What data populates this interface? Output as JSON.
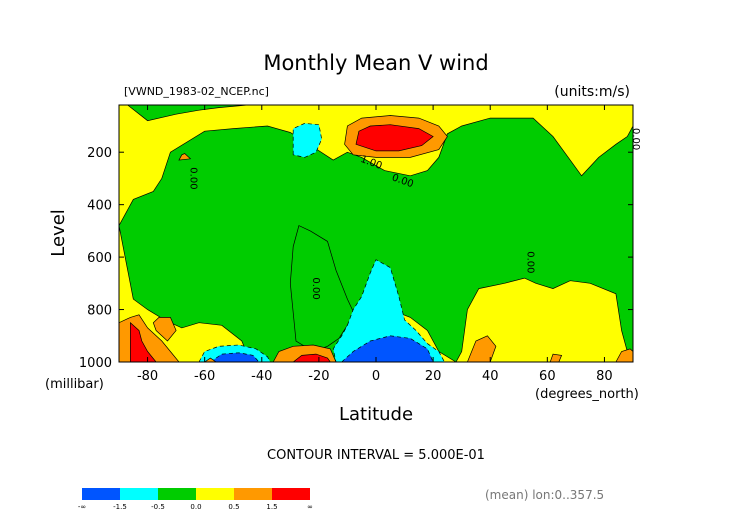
{
  "chart_data": {
    "type": "heatmap",
    "title": "Monthly Mean V wind",
    "file_label": "[VWND_1983-02_NCEP.nc]",
    "units_label": "(units:m/s)",
    "xlabel": "Latitude",
    "x_units": "(degrees_north)",
    "ylabel": "Level",
    "y_units": "(millibar)",
    "xlim": [
      -90,
      90
    ],
    "ylim": [
      1000,
      20
    ],
    "x_ticks": [
      -80,
      -60,
      -40,
      -20,
      0,
      20,
      40,
      60,
      80
    ],
    "y_ticks": [
      200,
      400,
      600,
      800,
      1000
    ],
    "footer": "CONTOUR INTERVAL = 5.000E-01",
    "mean_note": "(mean) lon:0..357.5",
    "legend": {
      "colors": [
        "#0055ff",
        "#00ffff",
        "#00cc00",
        "#ffff00",
        "#ff9900",
        "#ff0000"
      ],
      "labels": [
        "-∞",
        "-1.5",
        "-0.5",
        "0.0",
        "0.5",
        "1.5",
        "∞"
      ]
    },
    "contour_labels": [
      {
        "x": -65,
        "y": 300,
        "text": "0.00",
        "rotate": 90
      },
      {
        "x": -22,
        "y": 720,
        "text": "0.00",
        "rotate": 90
      },
      {
        "x": 53,
        "y": 620,
        "text": "0.00",
        "rotate": 90
      },
      {
        "x": 90,
        "y": 150,
        "text": "0.00",
        "rotate": 90
      },
      {
        "x": -2,
        "y": 250,
        "text": "1.00",
        "rotate": 20
      },
      {
        "x": 9,
        "y": 320,
        "text": "0.00",
        "rotate": 20
      }
    ],
    "regions": [
      {
        "level": 3,
        "points": [
          [
            -90,
            1000
          ],
          [
            -90,
            20
          ],
          [
            90,
            20
          ],
          [
            90,
            1000
          ]
        ]
      },
      {
        "level": 2,
        "points": [
          [
            -87,
            20
          ],
          [
            -80,
            80
          ],
          [
            -70,
            55
          ],
          [
            -62,
            40
          ],
          [
            -55,
            30
          ],
          [
            -45,
            20
          ]
        ]
      },
      {
        "level": 2,
        "points": [
          [
            -90,
            480
          ],
          [
            -85,
            380
          ],
          [
            -78,
            350
          ],
          [
            -75,
            300
          ],
          [
            -72,
            200
          ],
          [
            -60,
            120
          ],
          [
            -50,
            110
          ],
          [
            -38,
            100
          ],
          [
            -30,
            125
          ],
          [
            -22,
            180
          ],
          [
            -15,
            230
          ],
          [
            -10,
            200
          ],
          [
            -5,
            220
          ],
          [
            3,
            270
          ],
          [
            12,
            290
          ],
          [
            18,
            270
          ],
          [
            22,
            220
          ],
          [
            25,
            130
          ],
          [
            30,
            100
          ],
          [
            40,
            70
          ],
          [
            55,
            70
          ],
          [
            62,
            140
          ],
          [
            68,
            230
          ],
          [
            72,
            290
          ],
          [
            78,
            220
          ],
          [
            84,
            170
          ],
          [
            88,
            140
          ],
          [
            90,
            100
          ],
          [
            90,
            1000
          ],
          [
            88,
            960
          ],
          [
            86,
            880
          ],
          [
            84,
            740
          ],
          [
            75,
            700
          ],
          [
            68,
            690
          ],
          [
            62,
            720
          ],
          [
            56,
            700
          ],
          [
            52,
            680
          ],
          [
            45,
            700
          ],
          [
            36,
            720
          ],
          [
            32,
            800
          ],
          [
            30,
            960
          ],
          [
            28,
            1000
          ],
          [
            22,
            960
          ],
          [
            18,
            880
          ],
          [
            12,
            830
          ],
          [
            5,
            800
          ],
          [
            -2,
            790
          ],
          [
            -10,
            860
          ],
          [
            -13,
            910
          ],
          [
            -17,
            940
          ],
          [
            -22,
            960
          ],
          [
            -28,
            920
          ],
          [
            -30,
            700
          ],
          [
            -29,
            560
          ],
          [
            -27,
            480
          ],
          [
            -23,
            500
          ],
          [
            -17,
            540
          ],
          [
            -14,
            650
          ],
          [
            -10,
            760
          ],
          [
            -7,
            830
          ],
          [
            -4,
            870
          ],
          [
            -6,
            930
          ],
          [
            -12,
            990
          ],
          [
            -14,
            1000
          ],
          [
            -44,
            1000
          ],
          [
            -47,
            920
          ],
          [
            -54,
            860
          ],
          [
            -62,
            850
          ],
          [
            -68,
            870
          ],
          [
            -74,
            840
          ],
          [
            -80,
            800
          ],
          [
            -85,
            760
          ]
        ]
      },
      {
        "level": 1,
        "points": [
          [
            -10,
            860
          ],
          [
            -8,
            800
          ],
          [
            -5,
            750
          ],
          [
            -2,
            660
          ],
          [
            0,
            610
          ],
          [
            5,
            640
          ],
          [
            8,
            750
          ],
          [
            10,
            840
          ],
          [
            14,
            880
          ],
          [
            18,
            930
          ],
          [
            22,
            960
          ],
          [
            24,
            1000
          ],
          [
            -14,
            1000
          ],
          [
            -15,
            950
          ],
          [
            -12,
            900
          ]
        ]
      },
      {
        "level": 0,
        "points": [
          [
            -12,
            1000
          ],
          [
            -8,
            960
          ],
          [
            -2,
            920
          ],
          [
            5,
            900
          ],
          [
            12,
            910
          ],
          [
            18,
            950
          ],
          [
            20,
            1000
          ]
        ]
      },
      {
        "level": 1,
        "points": [
          [
            -62,
            1000
          ],
          [
            -60,
            960
          ],
          [
            -55,
            940
          ],
          [
            -48,
            935
          ],
          [
            -42,
            950
          ],
          [
            -38,
            980
          ],
          [
            -37,
            1000
          ]
        ]
      },
      {
        "level": 0,
        "points": [
          [
            -58,
            1000
          ],
          [
            -54,
            970
          ],
          [
            -48,
            965
          ],
          [
            -43,
            975
          ],
          [
            -41,
            1000
          ]
        ]
      },
      {
        "level": 1,
        "points": [
          [
            -29,
            210
          ],
          [
            -29,
            110
          ],
          [
            -25,
            90
          ],
          [
            -20,
            95
          ],
          [
            -19,
            150
          ],
          [
            -21,
            200
          ],
          [
            -25,
            220
          ]
        ]
      },
      {
        "level": 4,
        "points": [
          [
            -11,
            170
          ],
          [
            -10,
            100
          ],
          [
            -5,
            70
          ],
          [
            5,
            60
          ],
          [
            15,
            70
          ],
          [
            22,
            100
          ],
          [
            25,
            140
          ],
          [
            22,
            190
          ],
          [
            12,
            220
          ],
          [
            0,
            220
          ],
          [
            -8,
            210
          ]
        ]
      },
      {
        "level": 5,
        "points": [
          [
            -7,
            170
          ],
          [
            -6,
            120
          ],
          [
            -2,
            100
          ],
          [
            5,
            95
          ],
          [
            15,
            110
          ],
          [
            20,
            140
          ],
          [
            16,
            175
          ],
          [
            8,
            195
          ],
          [
            0,
            195
          ]
        ]
      },
      {
        "level": 4,
        "points": [
          [
            -36,
            1000
          ],
          [
            -34,
            960
          ],
          [
            -29,
            940
          ],
          [
            -22,
            935
          ],
          [
            -16,
            950
          ],
          [
            -14,
            1000
          ]
        ]
      },
      {
        "level": 5,
        "points": [
          [
            -29,
            1000
          ],
          [
            -26,
            975
          ],
          [
            -21,
            970
          ],
          [
            -17,
            985
          ],
          [
            -16,
            1000
          ]
        ]
      },
      {
        "level": 4,
        "points": [
          [
            -90,
            850
          ],
          [
            -86,
            830
          ],
          [
            -83,
            820
          ],
          [
            -80,
            870
          ],
          [
            -75,
            920
          ],
          [
            -72,
            960
          ],
          [
            -69,
            1000
          ],
          [
            -90,
            1000
          ]
        ]
      },
      {
        "level": 5,
        "points": [
          [
            -86,
            850
          ],
          [
            -83,
            880
          ],
          [
            -82,
            920
          ],
          [
            -80,
            960
          ],
          [
            -77,
            1000
          ],
          [
            -86,
            1000
          ]
        ]
      },
      {
        "level": 4,
        "points": [
          [
            -78,
            850
          ],
          [
            -76,
            830
          ],
          [
            -72,
            830
          ],
          [
            -70,
            880
          ],
          [
            -73,
            920
          ],
          [
            -77,
            880
          ]
        ]
      },
      {
        "level": 4,
        "points": [
          [
            -69,
            230
          ],
          [
            -68,
            210
          ],
          [
            -67,
            205
          ],
          [
            -65,
            225
          ]
        ]
      },
      {
        "level": 4,
        "points": [
          [
            32,
            1000
          ],
          [
            35,
            920
          ],
          [
            39,
            900
          ],
          [
            42,
            940
          ],
          [
            40,
            1000
          ]
        ]
      },
      {
        "level": 4,
        "points": [
          [
            84,
            1000
          ],
          [
            86,
            960
          ],
          [
            89,
            950
          ],
          [
            90,
            960
          ],
          [
            90,
            1000
          ]
        ]
      },
      {
        "level": 4,
        "points": [
          [
            61,
            1000
          ],
          [
            62,
            970
          ],
          [
            65,
            975
          ],
          [
            64,
            1000
          ]
        ]
      },
      {
        "level": 4,
        "points": [
          [
            -60,
            1000
          ],
          [
            -58,
            985
          ],
          [
            -56,
            1000
          ]
        ]
      }
    ]
  }
}
